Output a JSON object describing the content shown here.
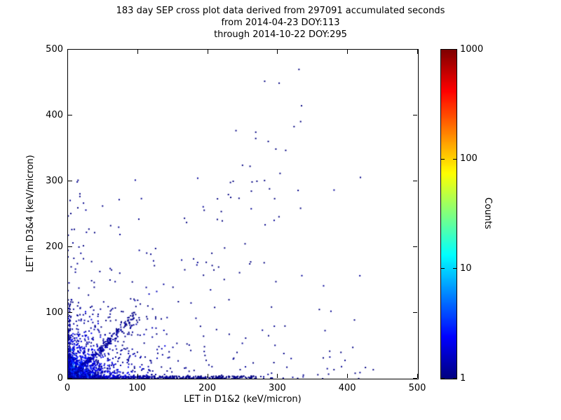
{
  "figure": {
    "background": "#ffffff",
    "title_lines": [
      "183 day SEP cross plot data derived from 297091 accumulated seconds",
      "from 2014-04-23 DOY:113",
      "through 2014-10-22 DOY:295"
    ]
  },
  "chart_data": {
    "type": "scatter",
    "title": "183 day SEP cross plot data derived from 297091 accumulated seconds from 2014-04-23 DOY:113 through 2014-10-22 DOY:295",
    "xlabel": "LET in D1&2 (keV/micron)",
    "ylabel": "LET in D3&4 (keV/micron)",
    "xlim": [
      0,
      500
    ],
    "ylim": [
      0,
      500
    ],
    "x_ticks": [
      0,
      100,
      200,
      300,
      400,
      500
    ],
    "y_ticks": [
      0,
      100,
      200,
      300,
      400,
      500
    ],
    "grid": false,
    "marker_size_px": 2,
    "colorbar": {
      "label": "Counts",
      "scale": "log",
      "range": [
        1,
        1000
      ],
      "ticks": [
        1000,
        100,
        10,
        1
      ],
      "colormap": "jet",
      "colormap_stops": [
        "#000080",
        "#0000ff",
        "#00ffff",
        "#ffff00",
        "#ff0000",
        "#800000"
      ],
      "min_count_color": "#000080",
      "max_count_color": "#800000"
    },
    "distribution": {
      "seed": 20140423,
      "description": "Dense high-count cluster at origin, ridges along both axes, tight diagonal streak to ~95 keV/micron, fan of low-count tracks in lower-left, sparse single-count events scattered with loose diagonal trend",
      "clouds": [
        {
          "name": "origin-core",
          "kind": "exp",
          "n": 1000,
          "sx": 5,
          "sy": 5,
          "cmin": 10,
          "cmax": 100
        },
        {
          "name": "origin-halo",
          "kind": "exp",
          "n": 900,
          "sx": 16,
          "sy": 14,
          "cmin": 2,
          "cmax": 15
        },
        {
          "name": "origin-wide",
          "kind": "exp",
          "n": 450,
          "sx": 40,
          "sy": 34,
          "cmin": 1,
          "cmax": 4
        },
        {
          "name": "x-axis-ridge",
          "kind": "ridge-x",
          "n": 650,
          "len": 270,
          "h": 4,
          "bias": 2.5,
          "cmin": 1,
          "cmax": 10
        },
        {
          "name": "y-axis-ridge",
          "kind": "ridge-y",
          "n": 180,
          "len": 115,
          "h": 3.5,
          "bias": 2.5,
          "cmin": 1,
          "cmax": 6
        },
        {
          "name": "diag-streak",
          "kind": "diag",
          "n": 300,
          "len": 95,
          "smin": 0.85,
          "smax": 1.08,
          "cmin": 1,
          "cmax": 7
        },
        {
          "name": "fan-tracks",
          "kind": "fan",
          "n": 260,
          "len": 150,
          "bias": 2.2,
          "cmin": 1,
          "cmax": 3
        },
        {
          "name": "mid-scatter",
          "kind": "power",
          "n": 230,
          "xmax": 440,
          "ymax": 310,
          "px": 2.2,
          "py": 2.6,
          "cmin": 1,
          "cmax": 2
        },
        {
          "name": "diag-sparse",
          "kind": "diagband",
          "n": 55,
          "xmin": 60,
          "xmax": 335,
          "smin": 0.6,
          "smax": 1.5,
          "cmin": 1,
          "cmax": 2
        }
      ]
    },
    "notable_points": [
      [
        330,
        470
      ],
      [
        281,
        452
      ],
      [
        240,
        377
      ],
      [
        297,
        349
      ],
      [
        303,
        312
      ],
      [
        263,
        299
      ],
      [
        236,
        300
      ],
      [
        219,
        254
      ],
      [
        253,
        205
      ],
      [
        206,
        172
      ],
      [
        150,
        139
      ],
      [
        17,
        281
      ],
      [
        4,
        251
      ],
      [
        9,
        227
      ],
      [
        38,
        222
      ],
      [
        22,
        202
      ],
      [
        60,
        150
      ],
      [
        425,
        17
      ],
      [
        357,
        6
      ],
      [
        390,
        40
      ],
      [
        310,
        80
      ],
      [
        230,
        120
      ]
    ]
  }
}
